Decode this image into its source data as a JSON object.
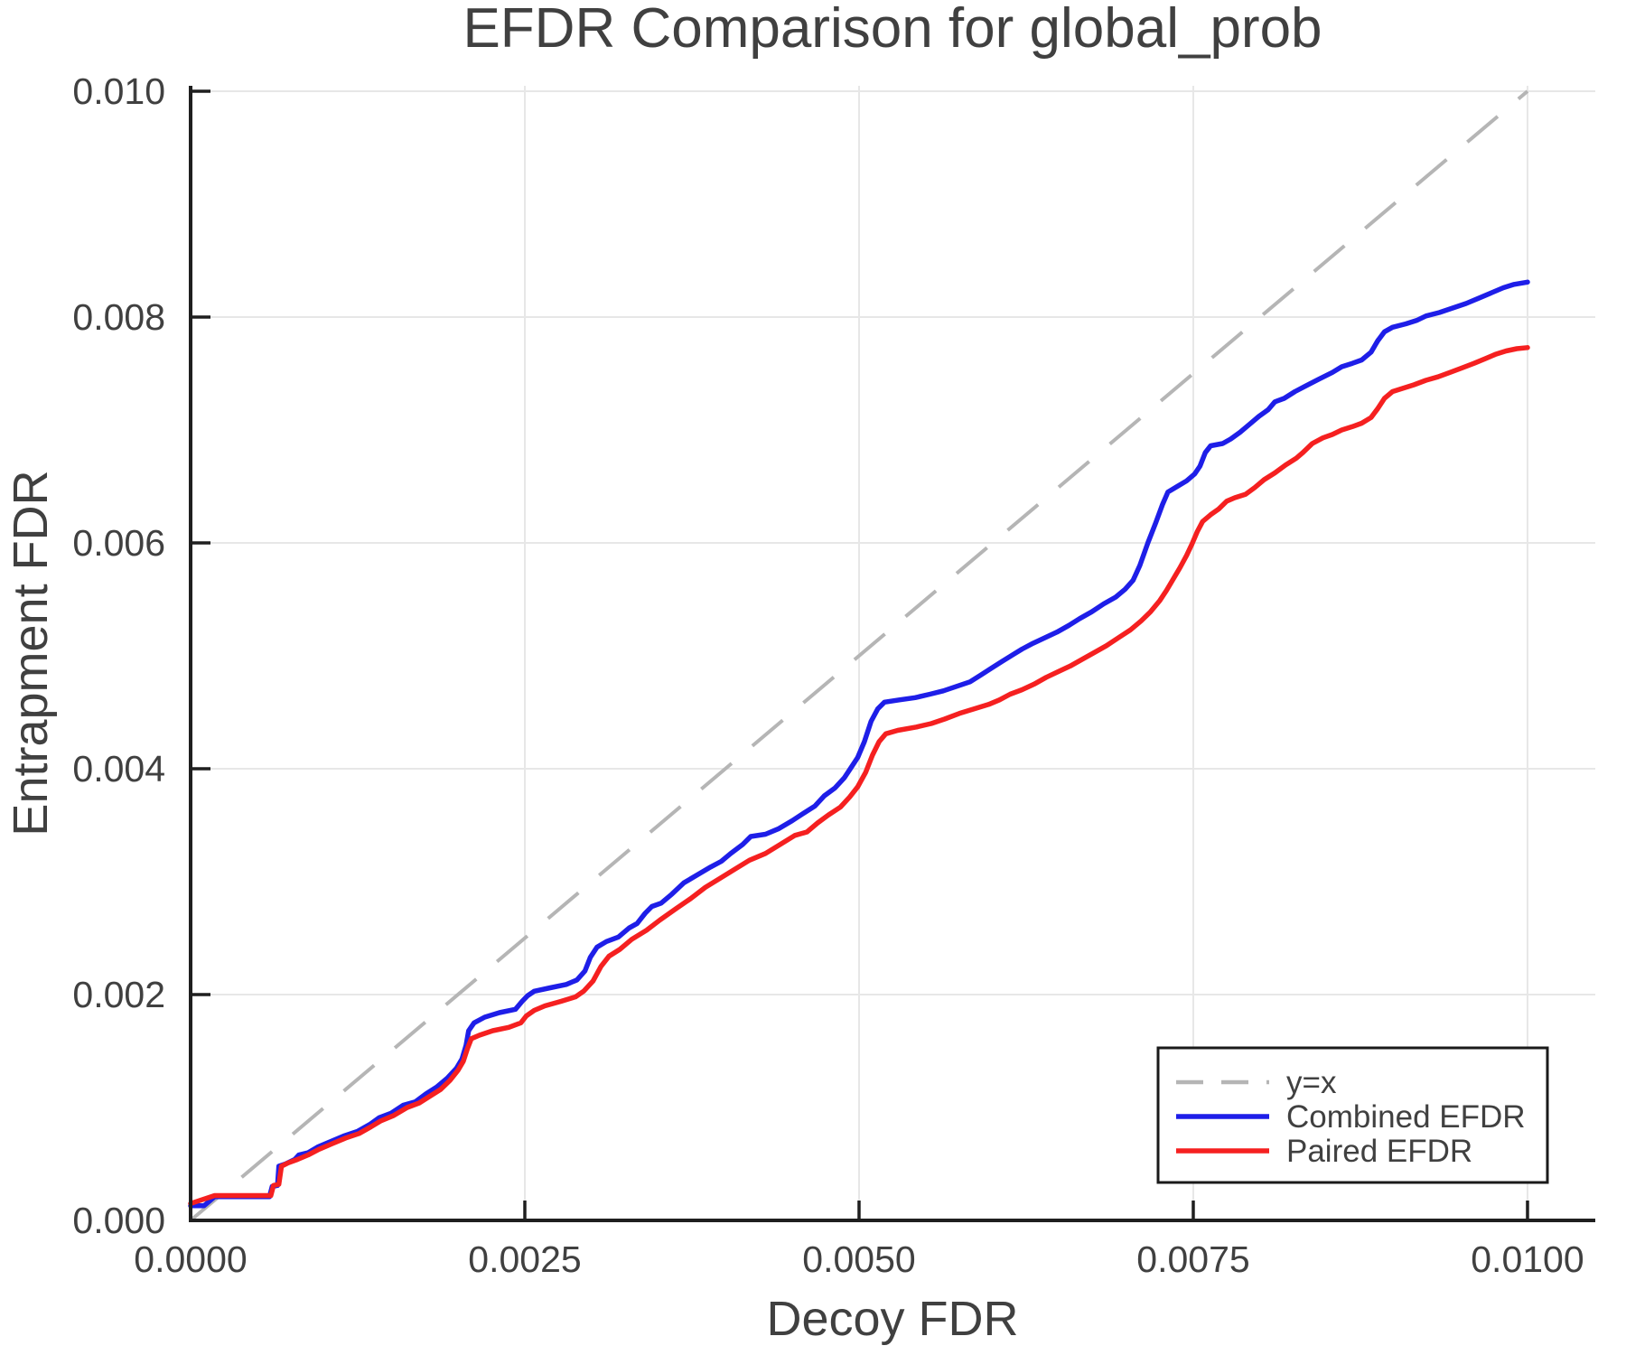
{
  "title": "EFDR Comparison for global_prob",
  "axes": {
    "xlabel": "Decoy FDR",
    "ylabel": "Entrapment FDR",
    "xtick_labels": [
      "0.0000",
      "0.0025",
      "0.0050",
      "0.0075",
      "0.0100"
    ],
    "xtick_values": [
      0.0,
      0.0025,
      0.005,
      0.0075,
      0.01
    ],
    "ytick_labels": [
      "0.000",
      "0.002",
      "0.004",
      "0.006",
      "0.008",
      "0.010"
    ],
    "ytick_values": [
      0.0,
      0.002,
      0.004,
      0.006,
      0.008,
      0.01
    ]
  },
  "legend": {
    "items": [
      {
        "label": "y=x",
        "color": "#b5b5b5",
        "dashed": true
      },
      {
        "label": "Combined EFDR",
        "color": "#1e1ee8",
        "dashed": false
      },
      {
        "label": "Paired EFDR",
        "color": "#f52020",
        "dashed": false
      }
    ]
  },
  "colors": {
    "identity_line": "#b5b5b5",
    "combined": "#1e1ee8",
    "paired": "#f52020",
    "grid": "#e7e7e7",
    "spine": "#1f1f1f",
    "text": "#404040",
    "legend_border": "#1a1a1a",
    "background": "#ffffff"
  },
  "chart_data": {
    "type": "line",
    "title": "EFDR Comparison for global_prob",
    "xlabel": "Decoy FDR",
    "ylabel": "Entrapment FDR",
    "xlim": [
      0.0,
      0.010507
    ],
    "ylim": [
      0.0,
      0.010048
    ],
    "grid": true,
    "legend_position": "lower right",
    "identity_line": {
      "name": "y=x",
      "from": [
        0.0,
        0.0
      ],
      "to": [
        0.01,
        0.01
      ],
      "style": "dashed"
    },
    "series": [
      {
        "name": "Combined EFDR",
        "color": "#1e1ee8",
        "style": "solid",
        "points": [
          [
            0.0,
            0.00013
          ],
          [
            0.0001,
            0.00013
          ],
          [
            0.00018,
            0.00021
          ],
          [
            0.00059,
            0.00021
          ],
          [
            0.00061,
            0.0003
          ],
          [
            0.00065,
            0.00031
          ],
          [
            0.00066,
            0.00048
          ],
          [
            0.00071,
            0.0005
          ],
          [
            0.00078,
            0.00054
          ],
          [
            0.00081,
            0.00058
          ],
          [
            0.00088,
            0.0006
          ],
          [
            0.00095,
            0.00065
          ],
          [
            0.00105,
            0.0007
          ],
          [
            0.00115,
            0.00075
          ],
          [
            0.00125,
            0.00079
          ],
          [
            0.00134,
            0.00085
          ],
          [
            0.00141,
            0.00091
          ],
          [
            0.0015,
            0.00095
          ],
          [
            0.00159,
            0.00102
          ],
          [
            0.00168,
            0.00105
          ],
          [
            0.00176,
            0.00112
          ],
          [
            0.00184,
            0.00118
          ],
          [
            0.00192,
            0.00126
          ],
          [
            0.00199,
            0.00135
          ],
          [
            0.00203,
            0.00143
          ],
          [
            0.00206,
            0.00155
          ],
          [
            0.00208,
            0.00168
          ],
          [
            0.00212,
            0.00175
          ],
          [
            0.0022,
            0.0018
          ],
          [
            0.00231,
            0.00184
          ],
          [
            0.00243,
            0.00187
          ],
          [
            0.00248,
            0.00194
          ],
          [
            0.00252,
            0.00199
          ],
          [
            0.00257,
            0.00203
          ],
          [
            0.00269,
            0.00206
          ],
          [
            0.00281,
            0.00209
          ],
          [
            0.00289,
            0.00213
          ],
          [
            0.00295,
            0.00221
          ],
          [
            0.00299,
            0.00233
          ],
          [
            0.00304,
            0.00242
          ],
          [
            0.00311,
            0.00247
          ],
          [
            0.0032,
            0.00251
          ],
          [
            0.00328,
            0.00259
          ],
          [
            0.00334,
            0.00263
          ],
          [
            0.0034,
            0.00272
          ],
          [
            0.00345,
            0.00278
          ],
          [
            0.00352,
            0.00281
          ],
          [
            0.0036,
            0.00289
          ],
          [
            0.00369,
            0.00299
          ],
          [
            0.00379,
            0.00306
          ],
          [
            0.00389,
            0.00313
          ],
          [
            0.00397,
            0.00318
          ],
          [
            0.00404,
            0.00325
          ],
          [
            0.00413,
            0.00333
          ],
          [
            0.00419,
            0.0034
          ],
          [
            0.0043,
            0.00342
          ],
          [
            0.0044,
            0.00347
          ],
          [
            0.0045,
            0.00354
          ],
          [
            0.00459,
            0.00361
          ],
          [
            0.00467,
            0.00367
          ],
          [
            0.00474,
            0.00376
          ],
          [
            0.00482,
            0.00383
          ],
          [
            0.00489,
            0.00392
          ],
          [
            0.00494,
            0.00401
          ],
          [
            0.00499,
            0.0041
          ],
          [
            0.00504,
            0.00424
          ],
          [
            0.00509,
            0.00442
          ],
          [
            0.00514,
            0.00453
          ],
          [
            0.00519,
            0.00459
          ],
          [
            0.0053,
            0.00461
          ],
          [
            0.00542,
            0.00463
          ],
          [
            0.00553,
            0.00466
          ],
          [
            0.00563,
            0.00469
          ],
          [
            0.00573,
            0.00473
          ],
          [
            0.00583,
            0.00477
          ],
          [
            0.00591,
            0.00483
          ],
          [
            0.00599,
            0.00489
          ],
          [
            0.00607,
            0.00495
          ],
          [
            0.00615,
            0.00501
          ],
          [
            0.00622,
            0.00506
          ],
          [
            0.0063,
            0.00511
          ],
          [
            0.00639,
            0.00516
          ],
          [
            0.00648,
            0.00521
          ],
          [
            0.00657,
            0.00527
          ],
          [
            0.00665,
            0.00533
          ],
          [
            0.00674,
            0.00539
          ],
          [
            0.00683,
            0.00546
          ],
          [
            0.00692,
            0.00552
          ],
          [
            0.00699,
            0.00559
          ],
          [
            0.00705,
            0.00567
          ],
          [
            0.0071,
            0.0058
          ],
          [
            0.00716,
            0.006
          ],
          [
            0.00722,
            0.00618
          ],
          [
            0.00727,
            0.00634
          ],
          [
            0.00731,
            0.00645
          ],
          [
            0.00738,
            0.0065
          ],
          [
            0.00745,
            0.00655
          ],
          [
            0.00751,
            0.00661
          ],
          [
            0.00755,
            0.00668
          ],
          [
            0.00759,
            0.0068
          ],
          [
            0.00763,
            0.00686
          ],
          [
            0.00772,
            0.00688
          ],
          [
            0.00778,
            0.00692
          ],
          [
            0.00785,
            0.00698
          ],
          [
            0.00792,
            0.00705
          ],
          [
            0.00799,
            0.00712
          ],
          [
            0.00806,
            0.00718
          ],
          [
            0.00811,
            0.00725
          ],
          [
            0.00818,
            0.00728
          ],
          [
            0.00826,
            0.00734
          ],
          [
            0.00834,
            0.00739
          ],
          [
            0.00844,
            0.00745
          ],
          [
            0.00854,
            0.00751
          ],
          [
            0.00861,
            0.00756
          ],
          [
            0.00869,
            0.00759
          ],
          [
            0.00876,
            0.00762
          ],
          [
            0.00883,
            0.00769
          ],
          [
            0.00888,
            0.00779
          ],
          [
            0.00893,
            0.00787
          ],
          [
            0.00899,
            0.00791
          ],
          [
            0.00909,
            0.00794
          ],
          [
            0.00917,
            0.00797
          ],
          [
            0.00924,
            0.00801
          ],
          [
            0.00934,
            0.00804
          ],
          [
            0.00944,
            0.00808
          ],
          [
            0.00954,
            0.00812
          ],
          [
            0.00964,
            0.00817
          ],
          [
            0.00974,
            0.00822
          ],
          [
            0.00982,
            0.00826
          ],
          [
            0.0099,
            0.00829
          ],
          [
            0.01,
            0.00831
          ]
        ]
      },
      {
        "name": "Paired EFDR",
        "color": "#f52020",
        "style": "solid",
        "points": [
          [
            0.0,
            0.00015
          ],
          [
            0.00018,
            0.00022
          ],
          [
            0.0006,
            0.00022
          ],
          [
            0.00062,
            0.00031
          ],
          [
            0.00066,
            0.00032
          ],
          [
            0.00068,
            0.00048
          ],
          [
            0.00073,
            0.00051
          ],
          [
            0.0008,
            0.00054
          ],
          [
            0.00088,
            0.00058
          ],
          [
            0.00096,
            0.00063
          ],
          [
            0.00106,
            0.00068
          ],
          [
            0.00116,
            0.00073
          ],
          [
            0.00126,
            0.00077
          ],
          [
            0.00135,
            0.00083
          ],
          [
            0.00142,
            0.00088
          ],
          [
            0.00152,
            0.00093
          ],
          [
            0.00162,
            0.001
          ],
          [
            0.00171,
            0.00104
          ],
          [
            0.00179,
            0.0011
          ],
          [
            0.00187,
            0.00116
          ],
          [
            0.00194,
            0.00124
          ],
          [
            0.002,
            0.00133
          ],
          [
            0.00204,
            0.00141
          ],
          [
            0.00207,
            0.00152
          ],
          [
            0.0021,
            0.00161
          ],
          [
            0.00216,
            0.00164
          ],
          [
            0.00226,
            0.00168
          ],
          [
            0.00238,
            0.00171
          ],
          [
            0.00247,
            0.00175
          ],
          [
            0.00251,
            0.00181
          ],
          [
            0.00257,
            0.00186
          ],
          [
            0.00265,
            0.0019
          ],
          [
            0.00277,
            0.00194
          ],
          [
            0.00288,
            0.00198
          ],
          [
            0.00294,
            0.00203
          ],
          [
            0.00301,
            0.00212
          ],
          [
            0.00307,
            0.00225
          ],
          [
            0.00313,
            0.00234
          ],
          [
            0.00321,
            0.0024
          ],
          [
            0.0033,
            0.00249
          ],
          [
            0.00341,
            0.00257
          ],
          [
            0.00351,
            0.00266
          ],
          [
            0.00363,
            0.00276
          ],
          [
            0.00374,
            0.00285
          ],
          [
            0.00385,
            0.00295
          ],
          [
            0.00396,
            0.00303
          ],
          [
            0.00407,
            0.00311
          ],
          [
            0.00418,
            0.00319
          ],
          [
            0.0043,
            0.00325
          ],
          [
            0.00441,
            0.00333
          ],
          [
            0.00452,
            0.00341
          ],
          [
            0.00461,
            0.00344
          ],
          [
            0.00469,
            0.00352
          ],
          [
            0.00477,
            0.00359
          ],
          [
            0.00486,
            0.00366
          ],
          [
            0.00493,
            0.00375
          ],
          [
            0.00499,
            0.00384
          ],
          [
            0.00505,
            0.00397
          ],
          [
            0.0051,
            0.00412
          ],
          [
            0.00515,
            0.00424
          ],
          [
            0.0052,
            0.00431
          ],
          [
            0.00529,
            0.00434
          ],
          [
            0.00543,
            0.00437
          ],
          [
            0.00554,
            0.0044
          ],
          [
            0.00564,
            0.00444
          ],
          [
            0.00575,
            0.00449
          ],
          [
            0.00586,
            0.00453
          ],
          [
            0.00597,
            0.00457
          ],
          [
            0.00605,
            0.00461
          ],
          [
            0.00613,
            0.00466
          ],
          [
            0.00622,
            0.0047
          ],
          [
            0.00631,
            0.00475
          ],
          [
            0.0064,
            0.00481
          ],
          [
            0.00649,
            0.00486
          ],
          [
            0.00658,
            0.00491
          ],
          [
            0.00667,
            0.00497
          ],
          [
            0.00676,
            0.00503
          ],
          [
            0.00685,
            0.00509
          ],
          [
            0.00694,
            0.00516
          ],
          [
            0.00703,
            0.00523
          ],
          [
            0.00711,
            0.00531
          ],
          [
            0.00718,
            0.00539
          ],
          [
            0.00725,
            0.00549
          ],
          [
            0.0073,
            0.00558
          ],
          [
            0.00735,
            0.00568
          ],
          [
            0.0074,
            0.00578
          ],
          [
            0.00745,
            0.00589
          ],
          [
            0.00749,
            0.00599
          ],
          [
            0.00753,
            0.0061
          ],
          [
            0.00757,
            0.00619
          ],
          [
            0.00763,
            0.00625
          ],
          [
            0.00769,
            0.0063
          ],
          [
            0.00775,
            0.00637
          ],
          [
            0.00781,
            0.0064
          ],
          [
            0.00789,
            0.00643
          ],
          [
            0.00796,
            0.00649
          ],
          [
            0.00803,
            0.00656
          ],
          [
            0.00811,
            0.00662
          ],
          [
            0.00819,
            0.00669
          ],
          [
            0.00827,
            0.00675
          ],
          [
            0.00832,
            0.0068
          ],
          [
            0.00839,
            0.00688
          ],
          [
            0.00847,
            0.00693
          ],
          [
            0.00854,
            0.00696
          ],
          [
            0.00861,
            0.007
          ],
          [
            0.00869,
            0.00703
          ],
          [
            0.00876,
            0.00706
          ],
          [
            0.00883,
            0.00711
          ],
          [
            0.00888,
            0.00719
          ],
          [
            0.00893,
            0.00728
          ],
          [
            0.00899,
            0.00734
          ],
          [
            0.00907,
            0.00737
          ],
          [
            0.00915,
            0.0074
          ],
          [
            0.00924,
            0.00744
          ],
          [
            0.00933,
            0.00747
          ],
          [
            0.00942,
            0.00751
          ],
          [
            0.00951,
            0.00755
          ],
          [
            0.0096,
            0.00759
          ],
          [
            0.00968,
            0.00763
          ],
          [
            0.00976,
            0.00767
          ],
          [
            0.00984,
            0.0077
          ],
          [
            0.00992,
            0.00772
          ],
          [
            0.01,
            0.00773
          ]
        ]
      }
    ]
  }
}
